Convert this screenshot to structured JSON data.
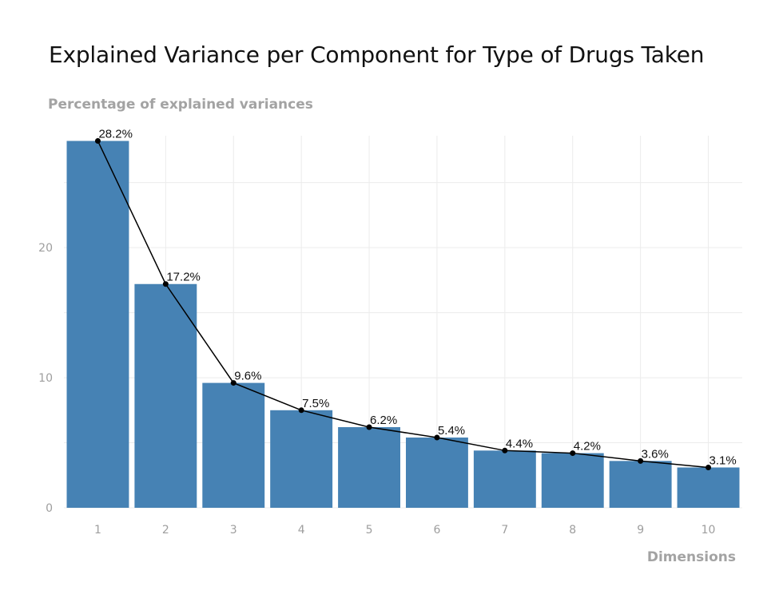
{
  "chart_data": {
    "type": "bar",
    "title": "Explained Variance per Component for Type of Drugs Taken",
    "ylabel": "Percentage of explained variances",
    "xlabel": "Dimensions",
    "categories": [
      "1",
      "2",
      "3",
      "4",
      "5",
      "6",
      "7",
      "8",
      "9",
      "10"
    ],
    "values": [
      28.2,
      17.2,
      9.6,
      7.5,
      6.2,
      5.4,
      4.4,
      4.2,
      3.6,
      3.1
    ],
    "data_labels": [
      "28.2%",
      "17.2%",
      "9.6%",
      "7.5%",
      "6.2%",
      "5.4%",
      "4.4%",
      "4.2%",
      "3.6%",
      "3.1%"
    ],
    "line_overlay": true,
    "yticks": [
      0,
      10,
      20
    ],
    "ylim": [
      0,
      28.6
    ],
    "grid": true,
    "bar_color": "#4682b4",
    "line_color": "#000000"
  }
}
